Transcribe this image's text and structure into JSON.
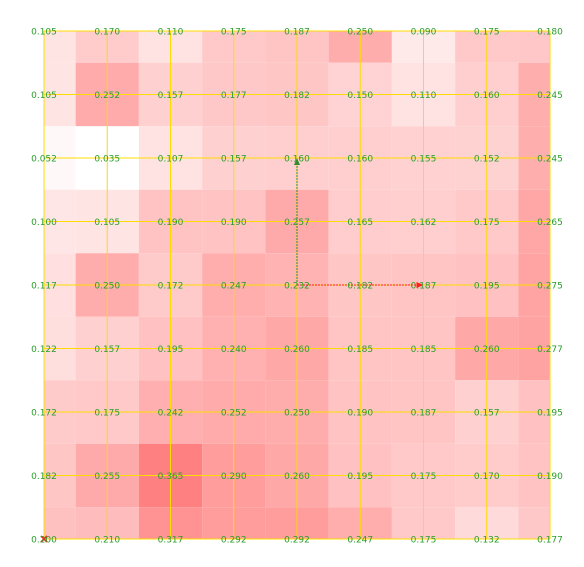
{
  "chart_data": {
    "type": "heatmap",
    "title": "",
    "xlabel": "",
    "ylabel": "",
    "rows": 9,
    "cols": 9,
    "cell_values_top_to_bottom": [
      [
        0.105,
        0.17,
        0.11,
        0.175,
        0.187,
        0.25,
        0.09,
        0.175,
        0.18
      ],
      [
        0.105,
        0.252,
        0.157,
        0.177,
        0.182,
        0.15,
        0.11,
        0.16,
        0.245
      ],
      [
        0.052,
        0.035,
        0.107,
        0.157,
        0.16,
        0.16,
        0.155,
        0.152,
        0.245
      ],
      [
        0.1,
        0.105,
        0.19,
        0.19,
        0.257,
        0.165,
        0.162,
        0.175,
        0.265
      ],
      [
        0.117,
        0.25,
        0.172,
        0.247,
        0.232,
        0.182,
        0.187,
        0.195,
        0.275
      ],
      [
        0.122,
        0.157,
        0.195,
        0.24,
        0.26,
        0.185,
        0.185,
        0.26,
        0.277
      ],
      [
        0.172,
        0.175,
        0.242,
        0.252,
        0.25,
        0.19,
        0.187,
        0.157,
        0.195
      ],
      [
        0.182,
        0.255,
        0.365,
        0.29,
        0.26,
        0.195,
        0.175,
        0.17,
        0.19
      ],
      [
        0.2,
        0.21,
        0.317,
        0.292,
        0.292,
        0.247,
        0.175,
        0.132,
        0.177
      ]
    ],
    "color_scale": {
      "low": "#ffffff",
      "high": "#ff8080"
    },
    "grid_line_color": "#ffdc00",
    "label_color": "#2a9d2a",
    "grid": true,
    "axes": {
      "x_axis": {
        "color": "#ff2020"
      },
      "y_axis": {
        "color": "#2e8b2e"
      }
    },
    "origin_marker": {
      "color": "#ff2020"
    }
  }
}
